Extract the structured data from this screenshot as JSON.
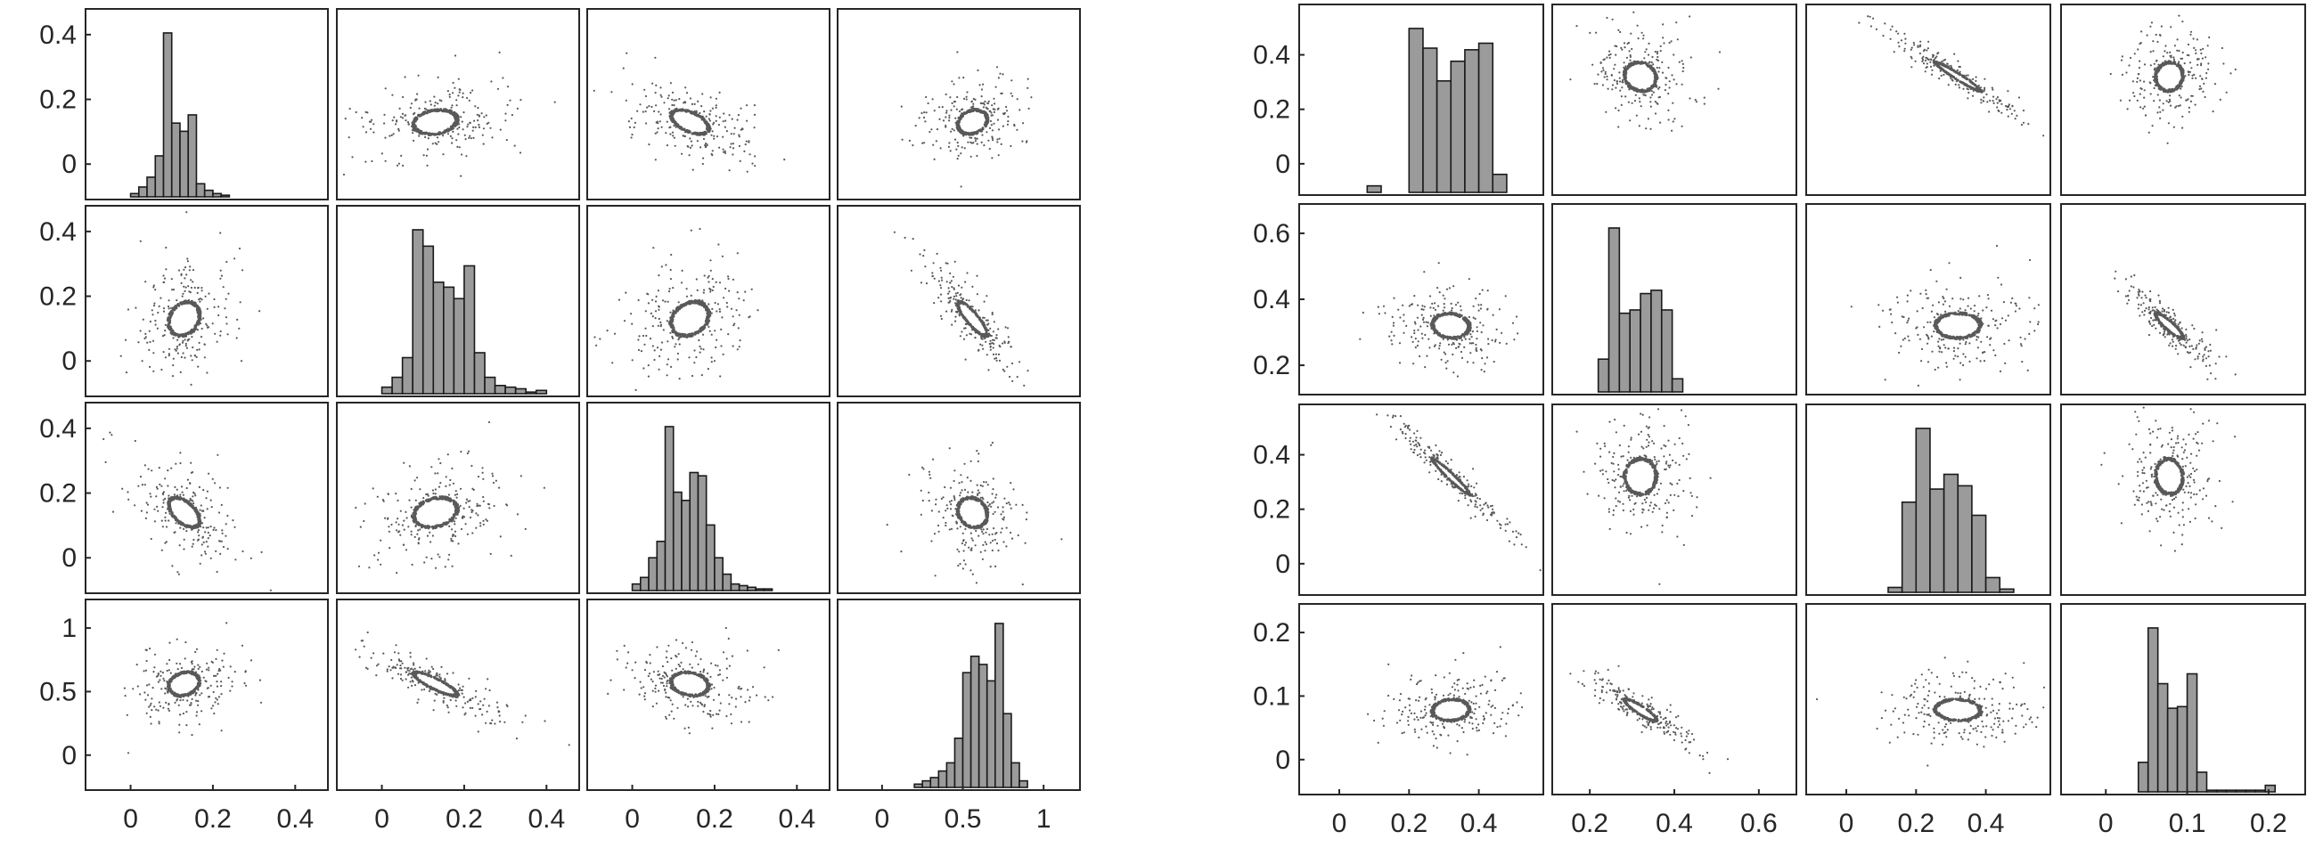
{
  "chart_data": [
    {
      "type": "scatter-matrix",
      "n_vars": 4,
      "y_ticks": [
        [
          "0",
          "0.2",
          "0.4"
        ],
        [
          "0",
          "0.2",
          "0.4"
        ],
        [
          "0",
          "0.2",
          "0.4"
        ],
        [
          "0",
          "0.5",
          "1"
        ]
      ],
      "y_tick_values": [
        [
          0,
          0.2,
          0.4
        ],
        [
          0,
          0.2,
          0.4
        ],
        [
          0,
          0.2,
          0.4
        ],
        [
          0,
          0.5,
          1
        ]
      ],
      "x_ticks": [
        [
          "0",
          "0.2",
          "0.4"
        ],
        [
          "0",
          "0.2",
          "0.4"
        ],
        [
          "0",
          "0.2",
          "0.4"
        ],
        [
          "0",
          "0.5",
          "1"
        ]
      ],
      "x_tick_values": [
        [
          0,
          0.2,
          0.4
        ],
        [
          0,
          0.2,
          0.4
        ],
        [
          0,
          0.2,
          0.4
        ],
        [
          0,
          0.5,
          1
        ]
      ],
      "ranges": [
        [
          -0.08,
          0.45
        ],
        [
          -0.08,
          0.45
        ],
        [
          -0.08,
          0.45
        ],
        [
          -0.2,
          1.15
        ]
      ],
      "histograms": [
        {
          "bin_edges": [
            0.0,
            0.02,
            0.04,
            0.06,
            0.08,
            0.1,
            0.12,
            0.14,
            0.16,
            0.18,
            0.2,
            0.22,
            0.24,
            0.26,
            0.28,
            0.3
          ],
          "relative_heights": [
            0.02,
            0.06,
            0.12,
            0.25,
            1.0,
            0.45,
            0.4,
            0.5,
            0.08,
            0.04,
            0.02,
            0.01,
            0.0,
            0.0,
            0.0
          ]
        },
        {
          "bin_edges": [
            0.0,
            0.025,
            0.05,
            0.075,
            0.1,
            0.125,
            0.15,
            0.175,
            0.2,
            0.225,
            0.25,
            0.275,
            0.3,
            0.325,
            0.35,
            0.375,
            0.4
          ],
          "relative_heights": [
            0.04,
            0.1,
            0.22,
            1.0,
            0.9,
            0.68,
            0.65,
            0.58,
            0.78,
            0.25,
            0.1,
            0.05,
            0.04,
            0.03,
            0.01,
            0.02
          ]
        },
        {
          "bin_edges": [
            0.0,
            0.02,
            0.04,
            0.06,
            0.08,
            0.1,
            0.12,
            0.14,
            0.16,
            0.18,
            0.2,
            0.22,
            0.24,
            0.26,
            0.28,
            0.3,
            0.32,
            0.34
          ],
          "relative_heights": [
            0.04,
            0.08,
            0.2,
            0.3,
            1.0,
            0.6,
            0.55,
            0.72,
            0.7,
            0.4,
            0.2,
            0.1,
            0.04,
            0.03,
            0.02,
            0.01,
            0.01
          ]
        },
        {
          "bin_edges": [
            0.2,
            0.25,
            0.3,
            0.35,
            0.4,
            0.45,
            0.5,
            0.55,
            0.6,
            0.65,
            0.7,
            0.75,
            0.8,
            0.85,
            0.9
          ],
          "relative_heights": [
            0.02,
            0.04,
            0.06,
            0.1,
            0.15,
            0.3,
            0.7,
            0.8,
            0.75,
            0.65,
            1.0,
            0.45,
            0.15,
            0.04
          ]
        }
      ],
      "centers": [
        0.13,
        0.13,
        0.14,
        0.56
      ],
      "cov": [
        [
          0.002,
          0.0006,
          -0.0013,
          0.001
        ],
        [
          0.0006,
          0.004,
          0.0008,
          -0.006
        ],
        [
          -0.0013,
          0.0008,
          0.003,
          -0.001
        ],
        [
          0.001,
          -0.006,
          -0.001,
          0.012
        ]
      ]
    },
    {
      "type": "scatter-matrix",
      "n_vars": 4,
      "y_ticks": [
        [
          "0",
          "0.2",
          "0.4"
        ],
        [
          "0.2",
          "0.4",
          "0.6"
        ],
        [
          "0",
          "0.2",
          "0.4"
        ],
        [
          "0",
          "0.1",
          "0.2"
        ]
      ],
      "y_tick_values": [
        [
          0,
          0.2,
          0.4
        ],
        [
          0.2,
          0.4,
          0.6
        ],
        [
          0,
          0.2,
          0.4
        ],
        [
          0,
          0.1,
          0.2
        ]
      ],
      "x_ticks": [
        [
          "0",
          "0.2",
          "0.4"
        ],
        [
          "0.2",
          "0.4",
          "0.6"
        ],
        [
          "0",
          "0.2",
          "0.4"
        ],
        [
          "0",
          "0.1",
          "0.2"
        ]
      ],
      "x_tick_values": [
        [
          0,
          0.2,
          0.4
        ],
        [
          0.2,
          0.4,
          0.6
        ],
        [
          0,
          0.2,
          0.4
        ],
        [
          0,
          0.1,
          0.2
        ]
      ],
      "ranges": [
        [
          -0.08,
          0.55
        ],
        [
          0.14,
          0.66
        ],
        [
          -0.08,
          0.55
        ],
        [
          -0.04,
          0.23
        ]
      ],
      "histograms": [
        {
          "bin_edges": [
            0.08,
            0.12,
            0.16,
            0.2,
            0.24,
            0.28,
            0.32,
            0.36,
            0.4,
            0.44,
            0.48
          ],
          "relative_heights": [
            0.04,
            0.0,
            0.0,
            1.0,
            0.88,
            0.68,
            0.8,
            0.87,
            0.91,
            0.11
          ]
        },
        {
          "bin_edges": [
            0.22,
            0.245,
            0.27,
            0.295,
            0.32,
            0.345,
            0.37,
            0.395,
            0.42
          ],
          "relative_heights": [
            0.2,
            1.0,
            0.48,
            0.5,
            0.6,
            0.62,
            0.5,
            0.08
          ]
        },
        {
          "bin_edges": [
            0.12,
            0.16,
            0.2,
            0.24,
            0.28,
            0.32,
            0.36,
            0.4,
            0.44,
            0.48
          ],
          "relative_heights": [
            0.03,
            0.55,
            1.0,
            0.63,
            0.72,
            0.65,
            0.47,
            0.09,
            0.02
          ]
        },
        {
          "bin_edges": [
            0.04,
            0.052,
            0.064,
            0.076,
            0.088,
            0.1,
            0.112,
            0.124,
            0.136,
            0.148,
            0.16,
            0.172,
            0.184,
            0.196,
            0.208
          ],
          "relative_heights": [
            0.18,
            1.0,
            0.66,
            0.51,
            0.52,
            0.72,
            0.12,
            0.01,
            0.01,
            0.01,
            0.01,
            0.01,
            0.01,
            0.04
          ]
        }
      ],
      "centers": [
        0.32,
        0.32,
        0.32,
        0.078
      ],
      "cov": [
        [
          0.004,
          -0.0003,
          -0.005,
          0.0001
        ],
        [
          -0.0003,
          0.002,
          0.0001,
          -0.0008
        ],
        [
          -0.005,
          0.0001,
          0.006,
          -0.0001
        ],
        [
          0.0001,
          -0.0008,
          -0.0001,
          0.0004
        ]
      ]
    }
  ]
}
